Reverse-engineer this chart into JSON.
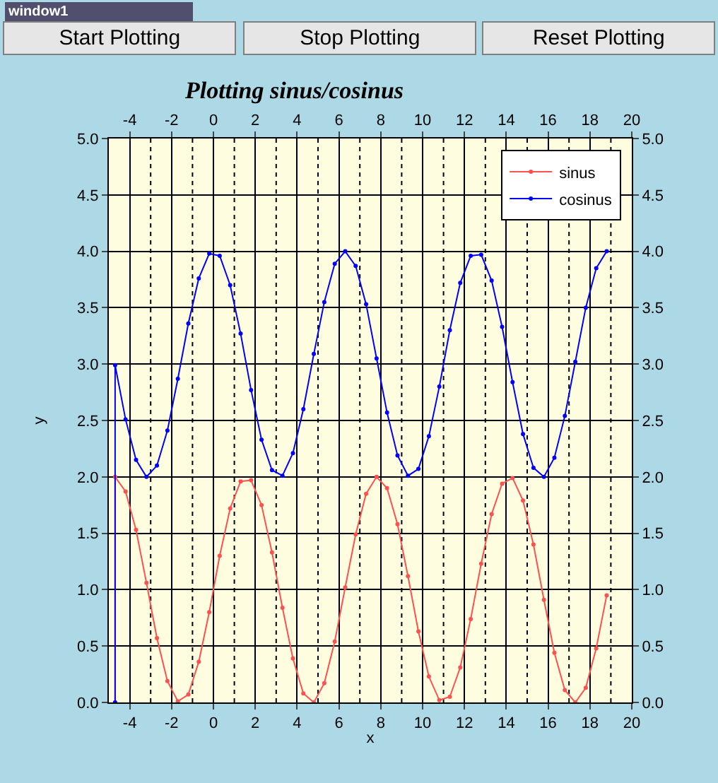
{
  "chart_data": {
    "type": "line",
    "title": "Plotting sinus/cosinus",
    "xlabel": "x",
    "ylabel": "y",
    "annotations": [
      "window1",
      "Start Plotting",
      "Stop Plotting",
      "Reset Plotting"
    ],
    "x": [
      -4.7,
      -4.7,
      -4.2,
      -3.7,
      -3.2,
      -2.7,
      -2.2,
      -1.7,
      -1.2,
      -0.7,
      -0.2,
      0.3,
      0.8,
      1.3,
      1.8,
      2.3,
      2.8,
      3.3,
      3.8,
      4.3,
      4.8,
      5.3,
      5.8,
      6.3,
      6.8,
      7.3,
      7.8,
      8.3,
      8.8,
      9.3,
      9.8,
      10.3,
      10.8,
      11.3,
      11.8,
      12.3,
      12.8,
      13.3,
      13.8,
      14.3,
      14.8,
      15.3,
      15.8,
      16.3,
      16.8,
      17.3,
      17.8,
      18.3,
      18.8
    ],
    "series": [
      {
        "name": "sinus",
        "color": "#ff5050",
        "values": [
          0,
          2.0,
          1.87,
          1.53,
          1.06,
          0.57,
          0.19,
          0.01,
          0.07,
          0.36,
          0.8,
          1.3,
          1.72,
          1.96,
          1.97,
          1.75,
          1.33,
          0.84,
          0.39,
          0.08,
          0.0,
          0.17,
          0.54,
          1.02,
          1.49,
          1.85,
          2.0,
          1.9,
          1.58,
          1.12,
          0.63,
          0.23,
          0.02,
          0.05,
          0.31,
          0.74,
          1.23,
          1.67,
          1.94,
          1.99,
          1.79,
          1.4,
          0.91,
          0.44,
          0.11,
          0.0,
          0.13,
          0.48,
          0.95
        ]
      },
      {
        "name": "cosinus",
        "color": "#0000ff",
        "values": [
          0,
          2.99,
          2.51,
          2.15,
          2.0,
          2.1,
          2.41,
          2.87,
          3.36,
          3.76,
          3.98,
          3.96,
          3.7,
          3.27,
          2.77,
          2.33,
          2.06,
          2.01,
          2.21,
          2.6,
          3.09,
          3.55,
          3.89,
          4.0,
          3.87,
          3.53,
          3.05,
          2.57,
          2.19,
          2.01,
          2.07,
          2.36,
          2.8,
          3.3,
          3.72,
          3.96,
          3.97,
          3.74,
          3.33,
          2.84,
          2.38,
          2.08,
          2.0,
          2.17,
          2.54,
          3.02,
          3.5,
          3.85,
          4.0
        ]
      }
    ],
    "xlim": [
      -5,
      20
    ],
    "xticks": [
      -4,
      -2,
      0,
      2,
      4,
      6,
      8,
      10,
      12,
      14,
      16,
      18,
      20
    ],
    "x2lim": [
      -5,
      20
    ],
    "x2ticks": [
      -4,
      -2,
      0,
      2,
      4,
      6,
      8,
      10,
      12,
      14,
      16,
      18,
      20
    ],
    "ylim": [
      0,
      5
    ],
    "yticks": [
      {
        "value": 0,
        "label": "0.0"
      },
      {
        "value": 0.5,
        "label": "0.5"
      },
      {
        "value": 1,
        "label": "1.0"
      },
      {
        "value": 1.5,
        "label": "1.5"
      },
      {
        "value": 2,
        "label": "2.0"
      },
      {
        "value": 2.5,
        "label": "2.5"
      },
      {
        "value": 3,
        "label": "3.0"
      },
      {
        "value": 3.5,
        "label": "3.5"
      },
      {
        "value": 4,
        "label": "4.0"
      },
      {
        "value": 4.5,
        "label": "4.5"
      },
      {
        "value": 5,
        "label": "5.0"
      }
    ],
    "y2lim": [
      0,
      5
    ],
    "y2ticks": [
      {
        "value": 0,
        "label": "0.0"
      },
      {
        "value": 0.5,
        "label": "0.5"
      },
      {
        "value": 1,
        "label": "1.0"
      },
      {
        "value": 1.5,
        "label": "1.5"
      },
      {
        "value": 2,
        "label": "2.0"
      },
      {
        "value": 2.5,
        "label": "2.5"
      },
      {
        "value": 3,
        "label": "3.0"
      },
      {
        "value": 3.5,
        "label": "3.5"
      },
      {
        "value": 4,
        "label": "4.0"
      },
      {
        "value": 4.5,
        "label": "4.5"
      },
      {
        "value": 5,
        "label": "5.0"
      }
    ],
    "grid": true,
    "legend": "top right",
    "marker": "circle",
    "line_style": "solid"
  }
}
